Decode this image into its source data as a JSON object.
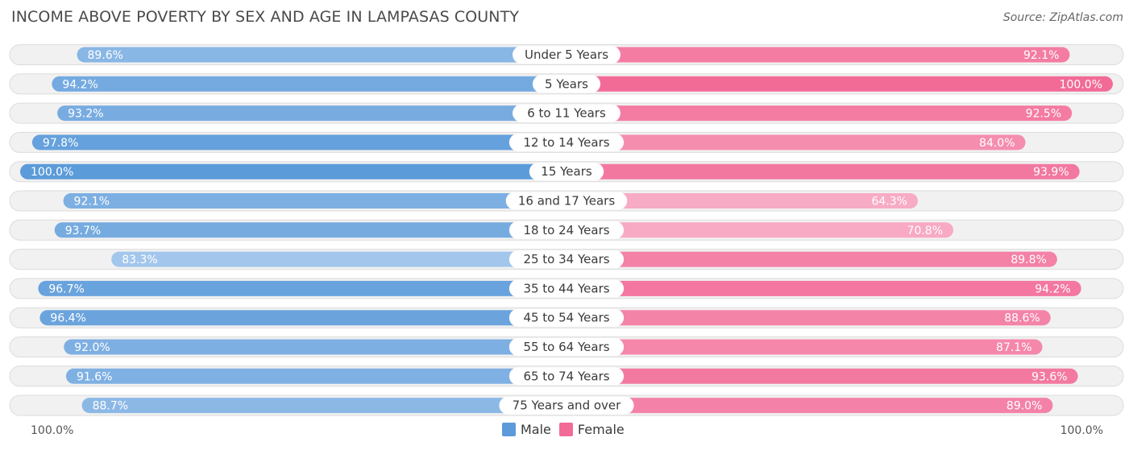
{
  "title": "INCOME ABOVE POVERTY BY SEX AND AGE IN LAMPASAS COUNTY",
  "source": "Source: ZipAtlas.com",
  "colors": {
    "male_strong": "#5b9bd9",
    "male_light": "#a9c9ee",
    "female_strong": "#f26b97",
    "female_light": "#f8abc4",
    "track": "#f1f1f1",
    "track_border": "#dcdcdc"
  },
  "chart_data": {
    "type": "bar",
    "orientation": "horizontal-diverging",
    "title": "INCOME ABOVE POVERTY BY SEX AND AGE IN LAMPASAS COUNTY",
    "categories": [
      "Under 5 Years",
      "5 Years",
      "6 to 11 Years",
      "12 to 14 Years",
      "15 Years",
      "16 and 17 Years",
      "18 to 24 Years",
      "25 to 34 Years",
      "35 to 44 Years",
      "45 to 54 Years",
      "55 to 64 Years",
      "65 to 74 Years",
      "75 Years and over"
    ],
    "series": [
      {
        "name": "Male",
        "values": [
          89.6,
          94.2,
          93.2,
          97.8,
          100.0,
          92.1,
          93.7,
          83.3,
          96.7,
          96.4,
          92.0,
          91.6,
          88.7
        ]
      },
      {
        "name": "Female",
        "values": [
          92.1,
          100.0,
          92.5,
          84.0,
          93.9,
          64.3,
          70.8,
          89.8,
          94.2,
          88.6,
          87.1,
          93.6,
          89.0
        ]
      }
    ],
    "value_labels": {
      "Male": [
        "89.6%",
        "94.2%",
        "93.2%",
        "97.8%",
        "100.0%",
        "92.1%",
        "93.7%",
        "83.3%",
        "96.7%",
        "96.4%",
        "92.0%",
        "91.6%",
        "88.7%"
      ],
      "Female": [
        "92.1%",
        "100.0%",
        "92.5%",
        "84.0%",
        "93.9%",
        "64.3%",
        "70.8%",
        "89.8%",
        "94.2%",
        "88.6%",
        "87.1%",
        "93.6%",
        "89.0%"
      ]
    },
    "xlim": [
      0,
      100
    ],
    "axis_left_label": "100.0%",
    "axis_right_label": "100.0%",
    "legend": [
      "Male",
      "Female"
    ],
    "legend_position": "bottom-center"
  }
}
